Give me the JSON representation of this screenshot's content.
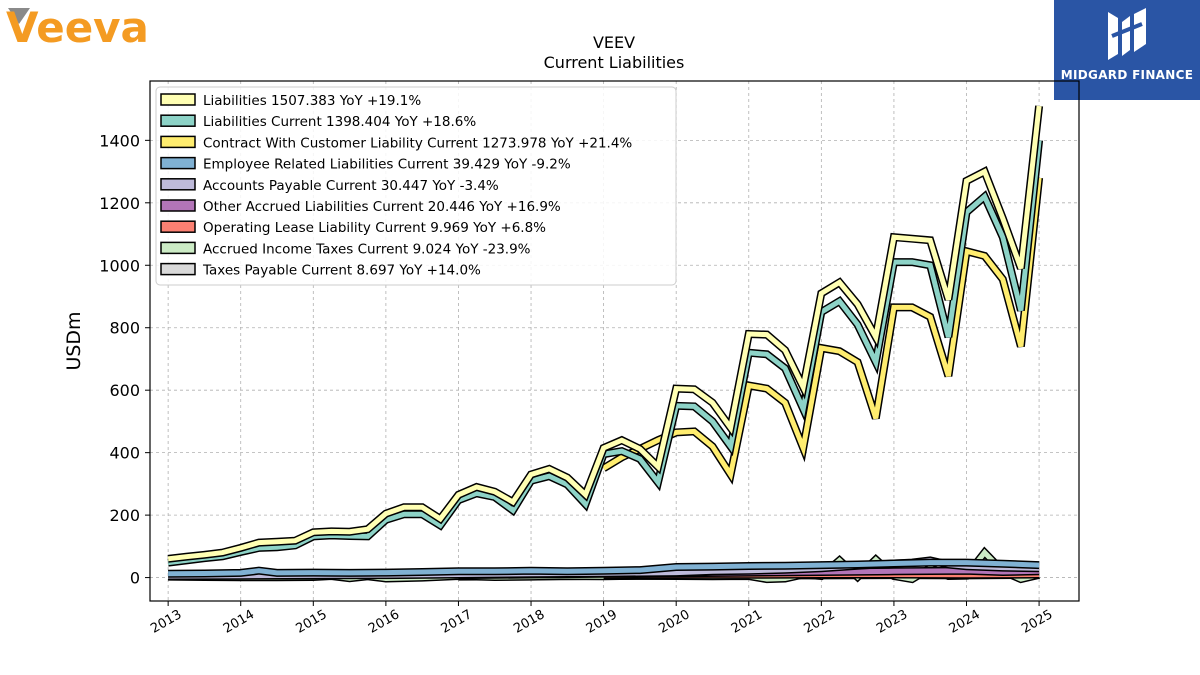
{
  "logos": {
    "left_text": "Veeva",
    "left_color": "#f49b22",
    "right_text": "MIDGARD FINANCE",
    "right_bg": "#2a55a5"
  },
  "chart_data": {
    "type": "line",
    "title": "VEEV",
    "subtitle": "Current  Liabilities",
    "ylabel": "USDm",
    "xlabel": "",
    "xlim": [
      2012.75,
      2025.55
    ],
    "ylim": [
      -75,
      1590
    ],
    "yticks": [
      0,
      200,
      400,
      600,
      800,
      1000,
      1200,
      1400
    ],
    "xticks": [
      "2013",
      "2014",
      "2015",
      "2016",
      "2017",
      "2018",
      "2019",
      "2020",
      "2021",
      "2022",
      "2023",
      "2024",
      "2025"
    ],
    "grid": true,
    "legend_position": "top-left",
    "series": [
      {
        "name": "Liabilities",
        "legend": "Liabilities  1507.383 YoY +19.1%",
        "color": "#ffffb3",
        "x": [
          2013.0,
          2013.25,
          2013.5,
          2013.75,
          2014.0,
          2014.25,
          2014.5,
          2014.75,
          2015.0,
          2015.25,
          2015.5,
          2015.75,
          2016.0,
          2016.25,
          2016.5,
          2016.75,
          2017.0,
          2017.25,
          2017.5,
          2017.75,
          2018.0,
          2018.25,
          2018.5,
          2018.75,
          2019.0,
          2019.25,
          2019.5,
          2019.75,
          2020.0,
          2020.25,
          2020.5,
          2020.75,
          2021.0,
          2021.25,
          2021.5,
          2021.75,
          2022.0,
          2022.25,
          2022.5,
          2022.75,
          2023.0,
          2023.25,
          2023.5,
          2023.75,
          2024.0,
          2024.25,
          2024.5,
          2024.75,
          2025.0
        ],
        "values": [
          60,
          67,
          73,
          80,
          95,
          112,
          115,
          118,
          145,
          148,
          147,
          155,
          205,
          225,
          225,
          188,
          265,
          290,
          275,
          242,
          330,
          348,
          320,
          265,
          415,
          440,
          412,
          355,
          605,
          603,
          560,
          480,
          780,
          778,
          728,
          610,
          910,
          945,
          875,
          770,
          1090,
          1085,
          1080,
          890,
          1270,
          1300,
          1150,
          990,
          1510
        ]
      },
      {
        "name": "Liabilities Current",
        "legend": "Liabilities Current  1398.404 YoY +18.6%",
        "color": "#8dd3c7",
        "x": [
          2013.0,
          2013.25,
          2013.5,
          2013.75,
          2014.0,
          2014.25,
          2014.5,
          2014.75,
          2015.0,
          2015.25,
          2015.5,
          2015.75,
          2016.0,
          2016.25,
          2016.5,
          2016.75,
          2017.0,
          2017.25,
          2017.5,
          2017.75,
          2018.0,
          2018.25,
          2018.5,
          2018.75,
          2019.0,
          2019.25,
          2019.5,
          2019.75,
          2020.0,
          2020.25,
          2020.5,
          2020.75,
          2021.0,
          2021.25,
          2021.5,
          2021.75,
          2022.0,
          2022.25,
          2022.5,
          2022.75,
          2023.0,
          2023.25,
          2023.5,
          2023.75,
          2024.0,
          2024.25,
          2024.5,
          2024.75,
          2025.0
        ],
        "values": [
          48,
          55,
          62,
          68,
          82,
          95,
          97,
          103,
          132,
          135,
          133,
          132,
          185,
          203,
          203,
          167,
          248,
          270,
          258,
          215,
          310,
          325,
          298,
          235,
          395,
          405,
          380,
          305,
          550,
          548,
          500,
          420,
          720,
          715,
          670,
          540,
          850,
          885,
          810,
          690,
          1010,
          1010,
          1000,
          770,
          1170,
          1220,
          1090,
          855,
          1400
        ]
      },
      {
        "name": "Contract With Customer Liability Current",
        "legend": "Contract With Customer Liability Current  1273.978 YoY +21.4%",
        "color": "#ffed6f",
        "x": [
          2019.0,
          2019.25,
          2019.5,
          2019.75,
          2020.0,
          2020.25,
          2020.5,
          2020.75,
          2021.0,
          2021.25,
          2021.5,
          2021.75,
          2022.0,
          2022.25,
          2022.5,
          2022.75,
          2023.0,
          2023.25,
          2023.5,
          2023.75,
          2024.0,
          2024.25,
          2024.5,
          2024.75,
          2025.0
        ],
        "values": [
          350,
          385,
          412,
          440,
          465,
          468,
          420,
          330,
          615,
          605,
          560,
          415,
          735,
          725,
          690,
          510,
          865,
          865,
          835,
          645,
          1045,
          1030,
          955,
          740,
          1280
        ]
      },
      {
        "name": "Employee Related Liabilities Current",
        "legend": "Employee Related Liabilities Current  39.429 YoY -9.2%",
        "color": "#80b1d3",
        "x": [
          2013.0,
          2013.5,
          2014.0,
          2014.25,
          2014.5,
          2015.0,
          2015.5,
          2016.0,
          2016.5,
          2017.0,
          2017.5,
          2018.0,
          2018.5,
          2019.0,
          2019.5,
          2020.0,
          2020.5,
          2021.0,
          2021.5,
          2022.0,
          2022.5,
          2023.0,
          2023.5,
          2024.0,
          2024.5,
          2025.0
        ],
        "values": [
          12,
          13,
          15,
          22,
          15,
          16,
          15,
          16,
          18,
          20,
          20,
          22,
          20,
          22,
          24,
          34,
          35,
          37,
          38,
          40,
          42,
          45,
          48,
          48,
          44,
          40
        ]
      },
      {
        "name": "Accounts Payable Current",
        "legend": "Accounts Payable Current  30.447 YoY -3.4%",
        "color": "#bebada",
        "x": [
          2013.0,
          2014.0,
          2015.0,
          2016.0,
          2017.0,
          2018.0,
          2019.0,
          2020.0,
          2020.5,
          2021.0,
          2021.5,
          2022.0,
          2022.5,
          2023.0,
          2023.25,
          2023.5,
          2023.75,
          2024.0,
          2024.5,
          2025.0
        ],
        "values": [
          5,
          6,
          7,
          8,
          10,
          12,
          14,
          16,
          20,
          22,
          25,
          30,
          38,
          45,
          48,
          55,
          42,
          36,
          32,
          30
        ]
      },
      {
        "name": "Other Accrued Liabilities Current",
        "legend": "Other Accrued Liabilities Current  20.446 YoY +16.9%",
        "color": "#b375b8",
        "x": [
          2017.0,
          2018.0,
          2019.0,
          2020.0,
          2021.0,
          2022.0,
          2023.0,
          2024.0,
          2024.5,
          2025.0
        ],
        "values": [
          8,
          10,
          12,
          14,
          16,
          18,
          20,
          22,
          18,
          20
        ]
      },
      {
        "name": "Operating Lease Liability Current",
        "legend": "Operating Lease Liability Current  9.969 YoY +6.8%",
        "color": "#fb8072",
        "x": [
          2019.0,
          2020.0,
          2021.0,
          2022.0,
          2023.0,
          2024.0,
          2025.0
        ],
        "values": [
          8,
          9,
          9,
          10,
          10,
          9,
          10
        ]
      },
      {
        "name": "Accrued Income Taxes Current",
        "legend": "Accrued Income Taxes Current  9.024 YoY -23.9%",
        "color": "#ccebc5",
        "x": [
          2013.0,
          2013.5,
          2014.0,
          2014.5,
          2015.0,
          2015.25,
          2015.5,
          2015.75,
          2016.0,
          2016.5,
          2017.0,
          2017.5,
          2018.0,
          2018.5,
          2019.0,
          2019.5,
          2020.0,
          2020.5,
          2021.0,
          2021.25,
          2021.5,
          2021.75,
          2022.0,
          2022.25,
          2022.5,
          2022.75,
          2023.0,
          2023.25,
          2023.5,
          2023.75,
          2024.0,
          2024.25,
          2024.5,
          2024.75,
          2025.0
        ],
        "values": [
          3,
          2,
          1,
          1,
          2,
          5,
          -2,
          4,
          -3,
          0,
          5,
          2,
          3,
          5,
          4,
          6,
          5,
          4,
          5,
          -5,
          -3,
          10,
          5,
          55,
          2,
          58,
          5,
          -5,
          30,
          5,
          6,
          80,
          20,
          -5,
          9
        ]
      },
      {
        "name": "Taxes Payable Current",
        "legend": "Taxes Payable Current  8.697 YoY +14.0%",
        "color": "#d9d9d9",
        "x": [
          2017.0,
          2018.0,
          2019.0,
          2020.0,
          2021.0,
          2022.0,
          2023.0,
          2024.0,
          2025.0
        ],
        "values": [
          3,
          4,
          5,
          6,
          7,
          7,
          8,
          7,
          9
        ]
      }
    ]
  }
}
